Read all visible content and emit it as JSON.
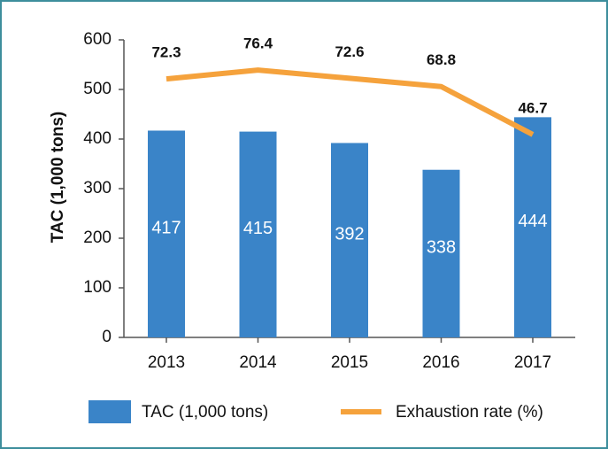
{
  "chart_data": {
    "type": "bar",
    "categories": [
      "2013",
      "2014",
      "2015",
      "2016",
      "2017"
    ],
    "ylabel": "TAC (1,000 tons)",
    "ylim": [
      0,
      600
    ],
    "yticks": [
      0,
      100,
      200,
      300,
      400,
      500,
      600
    ],
    "y2lim": [
      -46.7,
      90.3
    ],
    "series": [
      {
        "name": "TAC (1,000 tons)",
        "type": "bar",
        "color": "#3a84c8",
        "values": [
          417,
          415,
          392,
          338,
          444
        ]
      },
      {
        "name": "Exhaustion rate (%)",
        "type": "line",
        "axis": "y2",
        "color": "#f5a23c",
        "values": [
          72.3,
          76.4,
          72.6,
          68.8,
          46.7
        ]
      }
    ],
    "legend": "bottom"
  }
}
